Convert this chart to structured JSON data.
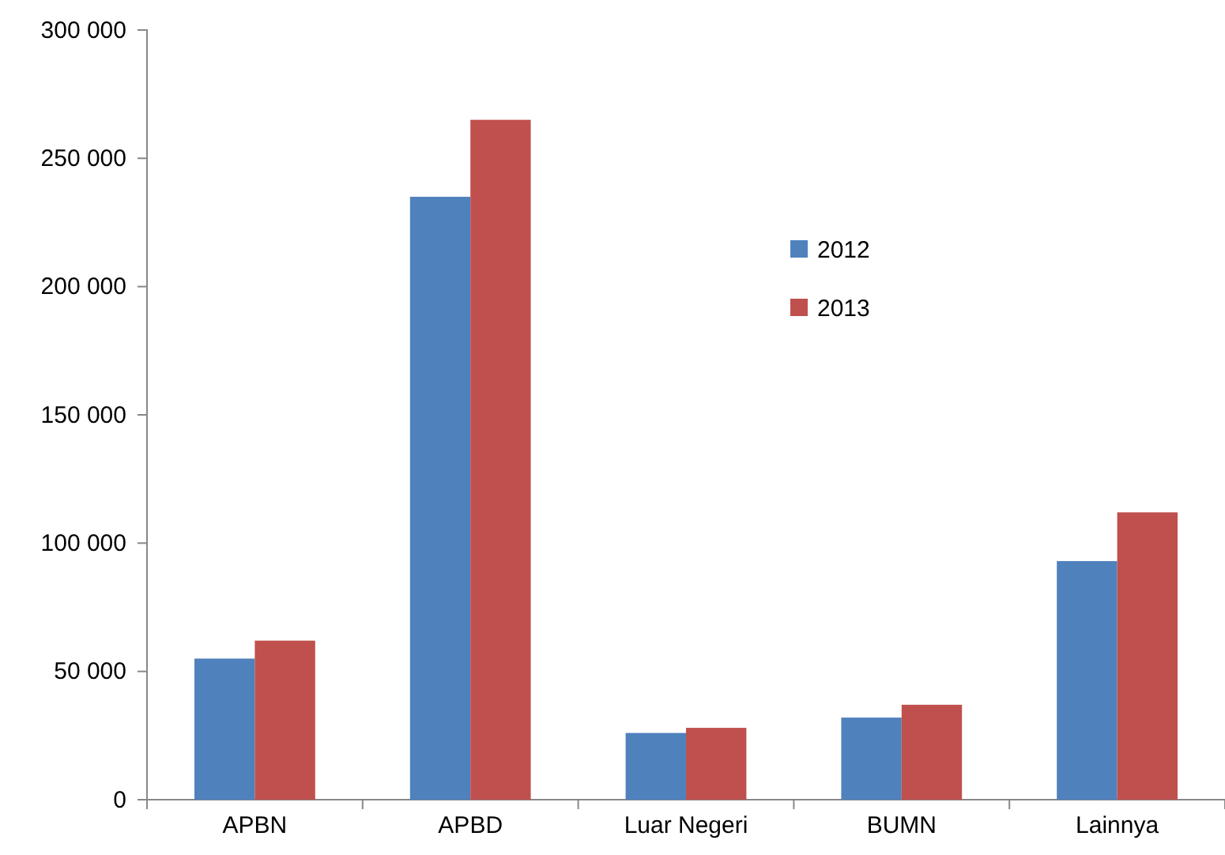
{
  "chart_data": {
    "type": "bar",
    "categories": [
      "APBN",
      "APBD",
      "Luar Negeri",
      "BUMN",
      "Lainnya"
    ],
    "series": [
      {
        "name": "2012",
        "color": "#4f81bd",
        "values": [
          55000,
          235000,
          26000,
          32000,
          93000
        ]
      },
      {
        "name": "2013",
        "color": "#c0504d",
        "values": [
          62000,
          265000,
          28000,
          37000,
          112000
        ]
      }
    ],
    "ylim": [
      0,
      300000
    ],
    "yticks": [
      {
        "value": 0,
        "label": "0"
      },
      {
        "value": 50000,
        "label": "50 000"
      },
      {
        "value": 100000,
        "label": "100 000"
      },
      {
        "value": 150000,
        "label": "150 000"
      },
      {
        "value": 200000,
        "label": "200 000"
      },
      {
        "value": 250000,
        "label": "250 000"
      },
      {
        "value": 300000,
        "label": "300 000"
      }
    ],
    "grid": false,
    "legend": "top right"
  }
}
